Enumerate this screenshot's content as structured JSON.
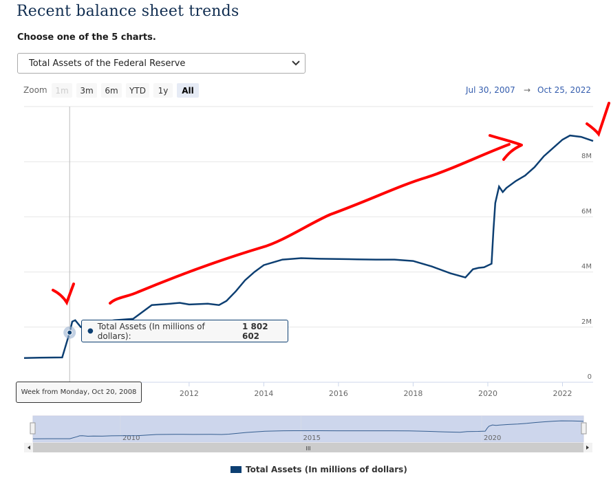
{
  "page": {
    "title": "Recent balance sheet trends",
    "prompt": "Choose one of the 5 charts.",
    "select": {
      "value": "Total Assets of the Federal Reserve"
    }
  },
  "zoom": {
    "label": "Zoom",
    "buttons": [
      {
        "label": "1m",
        "state": "disabled"
      },
      {
        "label": "3m",
        "state": "normal"
      },
      {
        "label": "6m",
        "state": "normal"
      },
      {
        "label": "YTD",
        "state": "normal"
      },
      {
        "label": "1y",
        "state": "normal"
      },
      {
        "label": "All",
        "state": "active"
      }
    ]
  },
  "range": {
    "from": "Jul 30, 2007",
    "arrow": "→",
    "to": "Oct 25, 2022"
  },
  "tooltip": {
    "date": "Week from Monday, Oct 20, 2008",
    "series_name": "Total Assets (In millions of dollars):",
    "value": "1 802 602"
  },
  "navigator": {
    "scroll_label": "III"
  },
  "chart_data": {
    "type": "line",
    "title": "",
    "xlabel": "",
    "ylabel": "",
    "x_tick_labels": [
      "2012",
      "2014",
      "2016",
      "2018",
      "2020",
      "2022"
    ],
    "y_tick_labels": [
      "0",
      "2M",
      "4M",
      "6M",
      "8M"
    ],
    "ylim": [
      0,
      10000000
    ],
    "xlim": [
      2007.58,
      2022.82
    ],
    "navigator_tick_labels": [
      "2010",
      "2015",
      "2020"
    ],
    "series": [
      {
        "name": "Total Assets (In millions of dollars)",
        "color": "#0d3f72",
        "x": [
          2007.58,
          2008.0,
          2008.6,
          2008.8,
          2008.87,
          2008.95,
          2009.1,
          2009.25,
          2009.5,
          2009.75,
          2010.0,
          2010.5,
          2011.0,
          2011.5,
          2011.75,
          2012.0,
          2012.5,
          2012.8,
          2013.0,
          2013.25,
          2013.5,
          2013.75,
          2014.0,
          2014.5,
          2014.8,
          2015.0,
          2015.5,
          2016.0,
          2016.5,
          2017.0,
          2017.5,
          2018.0,
          2018.5,
          2019.0,
          2019.4,
          2019.6,
          2019.75,
          2019.9,
          2020.1,
          2020.15,
          2020.2,
          2020.3,
          2020.4,
          2020.5,
          2020.75,
          2021.0,
          2021.25,
          2021.5,
          2021.75,
          2022.0,
          2022.2,
          2022.5,
          2022.82
        ],
        "values": [
          880000,
          890000,
          900000,
          1802602,
          2200000,
          2250000,
          2000000,
          2100000,
          2050000,
          2200000,
          2250000,
          2300000,
          2800000,
          2850000,
          2880000,
          2820000,
          2850000,
          2800000,
          2950000,
          3300000,
          3700000,
          4000000,
          4250000,
          4450000,
          4480000,
          4500000,
          4480000,
          4470000,
          4460000,
          4450000,
          4450000,
          4400000,
          4200000,
          3950000,
          3800000,
          4100000,
          4150000,
          4170000,
          4300000,
          5500000,
          6500000,
          7100000,
          6900000,
          7050000,
          7300000,
          7500000,
          7800000,
          8200000,
          8500000,
          8800000,
          8950000,
          8900000,
          8750000
        ]
      }
    ],
    "legend": "Total Assets (In millions of dollars)"
  }
}
